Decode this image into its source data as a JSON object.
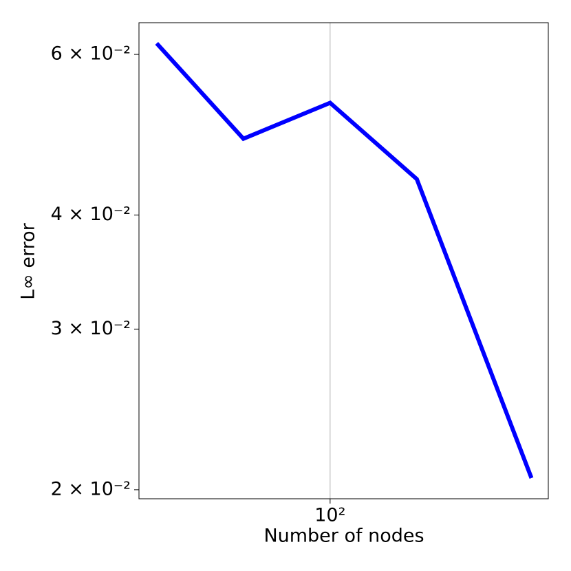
{
  "chart_data": {
    "type": "line",
    "xlabel": "Number of nodes",
    "ylabel": "L∞ error",
    "x": [
      25,
      50,
      100,
      200,
      500
    ],
    "series": [
      {
        "color": "#0000ff",
        "values": [
          0.0617,
          0.0485,
          0.0531,
          0.0438,
          0.0206
        ]
      }
    ],
    "xlog": true,
    "ylog": true,
    "xlim": [
      21.7,
      572
    ],
    "ylim": [
      0.01955,
      0.065
    ],
    "xticks": [
      {
        "value": 100,
        "label": "10²"
      }
    ],
    "yticks": [
      {
        "value": 0.02,
        "label": "2 × 10⁻²"
      },
      {
        "value": 0.03,
        "label": "3 × 10⁻²"
      },
      {
        "value": 0.04,
        "label": "4 × 10⁻²"
      },
      {
        "value": 0.06,
        "label": "6 × 10⁻²"
      }
    ],
    "xgrid": true
  }
}
